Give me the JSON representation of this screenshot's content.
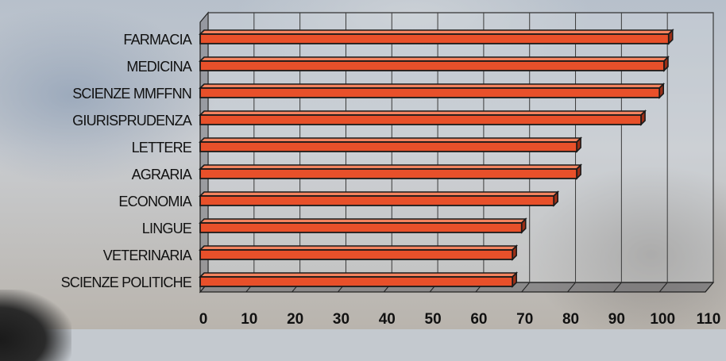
{
  "chart_data": {
    "type": "bar",
    "orientation": "horizontal",
    "categories": [
      "FARMACIA",
      "MEDICINA",
      "SCIENZE MMFFNN",
      "GIURISPRUDENZA",
      "LETTERE",
      "AGRARIA",
      "ECONOMIA",
      "LINGUE",
      "VETERINARIA",
      "SCIENZE POLITICHE"
    ],
    "values": [
      102,
      101,
      100,
      96,
      82,
      82,
      77,
      70,
      68,
      68
    ],
    "xlim": [
      0,
      110
    ],
    "xticks": [
      0,
      10,
      20,
      30,
      40,
      50,
      60,
      70,
      80,
      90,
      100,
      110
    ],
    "grid": true,
    "bar_color": "#e8502a",
    "bar_edge_color": "#1a1a1a",
    "title": "",
    "xlabel": "",
    "ylabel": ""
  }
}
